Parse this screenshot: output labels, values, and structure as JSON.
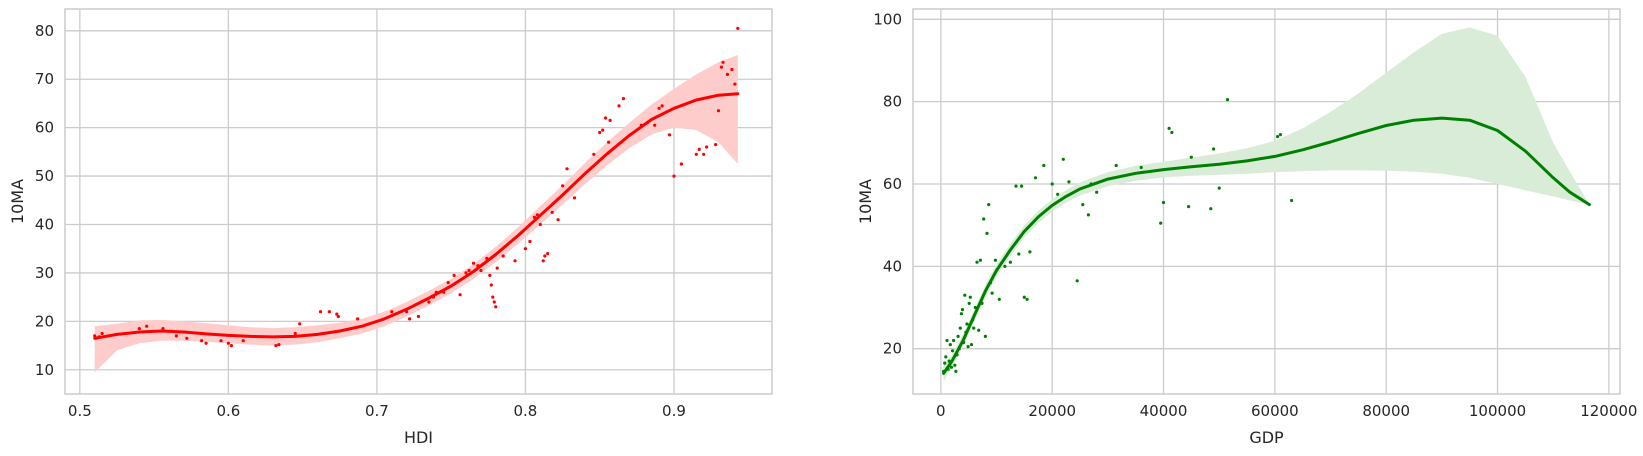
{
  "chart_data": [
    {
      "type": "scatter",
      "title": "",
      "xlabel": "HDI",
      "ylabel": "10MA",
      "xlim": [
        0.49,
        0.966
      ],
      "ylim": [
        5,
        84.5
      ],
      "xticks": [
        0.5,
        0.6,
        0.7,
        0.8,
        0.9
      ],
      "xtick_labels": [
        "0.5",
        "0.6",
        "0.7",
        "0.8",
        "0.9"
      ],
      "yticks": [
        10,
        20,
        30,
        40,
        50,
        60,
        70,
        80
      ],
      "ytick_labels": [
        "10",
        "20",
        "30",
        "40",
        "50",
        "60",
        "70",
        "80"
      ],
      "grid": true,
      "legend": "none",
      "color": "#ff0000",
      "band_color": "#ffcccc",
      "points": [
        [
          0.51,
          17.0
        ],
        [
          0.511,
          16.5
        ],
        [
          0.513,
          16.8
        ],
        [
          0.515,
          17.5
        ],
        [
          0.54,
          18.5
        ],
        [
          0.545,
          19.0
        ],
        [
          0.556,
          18.5
        ],
        [
          0.565,
          17.0
        ],
        [
          0.572,
          16.5
        ],
        [
          0.582,
          16.0
        ],
        [
          0.585,
          15.5
        ],
        [
          0.595,
          16.0
        ],
        [
          0.6,
          15.5
        ],
        [
          0.602,
          15.0
        ],
        [
          0.61,
          16.0
        ],
        [
          0.632,
          15.0
        ],
        [
          0.634,
          15.2
        ],
        [
          0.645,
          17.5
        ],
        [
          0.648,
          19.5
        ],
        [
          0.662,
          22.0
        ],
        [
          0.668,
          22.0
        ],
        [
          0.673,
          21.5
        ],
        [
          0.674,
          21.0
        ],
        [
          0.687,
          20.5
        ],
        [
          0.71,
          22.0
        ],
        [
          0.72,
          22.0
        ],
        [
          0.722,
          20.5
        ],
        [
          0.728,
          21.0
        ],
        [
          0.735,
          24.0
        ],
        [
          0.738,
          25.0
        ],
        [
          0.74,
          26.0
        ],
        [
          0.745,
          26.0
        ],
        [
          0.748,
          28.0
        ],
        [
          0.752,
          29.5
        ],
        [
          0.756,
          25.5
        ],
        [
          0.76,
          30.0
        ],
        [
          0.762,
          30.5
        ],
        [
          0.765,
          32.0
        ],
        [
          0.768,
          31.5
        ],
        [
          0.77,
          30.5
        ],
        [
          0.774,
          33.0
        ],
        [
          0.776,
          29.5
        ],
        [
          0.777,
          27.5
        ],
        [
          0.778,
          25.0
        ],
        [
          0.779,
          24.0
        ],
        [
          0.78,
          23.0
        ],
        [
          0.781,
          31.0
        ],
        [
          0.785,
          33.5
        ],
        [
          0.793,
          32.5
        ],
        [
          0.8,
          35.0
        ],
        [
          0.803,
          36.5
        ],
        [
          0.806,
          41.5
        ],
        [
          0.808,
          42.0
        ],
        [
          0.81,
          40.0
        ],
        [
          0.812,
          32.5
        ],
        [
          0.813,
          33.5
        ],
        [
          0.815,
          34.0
        ],
        [
          0.818,
          42.5
        ],
        [
          0.822,
          41.0
        ],
        [
          0.825,
          48.0
        ],
        [
          0.828,
          51.5
        ],
        [
          0.833,
          45.5
        ],
        [
          0.846,
          54.5
        ],
        [
          0.85,
          59.0
        ],
        [
          0.852,
          59.5
        ],
        [
          0.854,
          62.0
        ],
        [
          0.856,
          57.0
        ],
        [
          0.857,
          61.5
        ],
        [
          0.863,
          64.5
        ],
        [
          0.866,
          66.0
        ],
        [
          0.878,
          60.5
        ],
        [
          0.882,
          61.0
        ],
        [
          0.887,
          60.5
        ],
        [
          0.89,
          64.0
        ],
        [
          0.892,
          64.5
        ],
        [
          0.897,
          58.5
        ],
        [
          0.9,
          50.0
        ],
        [
          0.905,
          52.5
        ],
        [
          0.915,
          54.5
        ],
        [
          0.917,
          55.5
        ],
        [
          0.92,
          54.5
        ],
        [
          0.922,
          56.0
        ],
        [
          0.928,
          56.5
        ],
        [
          0.93,
          63.5
        ],
        [
          0.932,
          72.5
        ],
        [
          0.933,
          73.5
        ],
        [
          0.936,
          71.0
        ],
        [
          0.939,
          72.0
        ],
        [
          0.941,
          69.0
        ],
        [
          0.943,
          80.5
        ]
      ],
      "fit_x": [
        0.51,
        0.525,
        0.54,
        0.555,
        0.57,
        0.585,
        0.6,
        0.615,
        0.63,
        0.645,
        0.66,
        0.675,
        0.69,
        0.705,
        0.72,
        0.735,
        0.75,
        0.765,
        0.78,
        0.795,
        0.81,
        0.825,
        0.84,
        0.855,
        0.87,
        0.885,
        0.9,
        0.915,
        0.93,
        0.943
      ],
      "fit_y": [
        16.5,
        17.3,
        17.8,
        18.0,
        17.8,
        17.4,
        17.1,
        16.9,
        16.8,
        16.9,
        17.3,
        18.0,
        19.0,
        20.5,
        22.5,
        24.8,
        27.3,
        30.3,
        33.8,
        37.7,
        41.9,
        46.1,
        50.5,
        54.6,
        58.4,
        61.7,
        64.0,
        65.7,
        66.7,
        67.0
      ],
      "fit_lo": [
        9.5,
        14.0,
        15.5,
        16.0,
        16.0,
        15.8,
        15.5,
        15.2,
        15.0,
        15.2,
        15.7,
        16.5,
        17.5,
        19.0,
        21.0,
        23.3,
        25.8,
        28.8,
        32.2,
        36.0,
        40.0,
        44.1,
        48.3,
        52.2,
        55.8,
        58.6,
        60.0,
        59.5,
        57.0,
        52.5
      ],
      "fit_hi": [
        19.0,
        19.5,
        20.2,
        20.3,
        20.0,
        19.6,
        19.2,
        18.8,
        18.6,
        18.8,
        19.2,
        19.7,
        20.5,
        22.0,
        24.0,
        26.3,
        28.8,
        31.8,
        35.4,
        39.4,
        43.8,
        48.1,
        52.7,
        57.0,
        61.0,
        64.8,
        68.0,
        71.0,
        73.5,
        75.0
      ]
    },
    {
      "type": "scatter",
      "title": "",
      "xlabel": "GDP",
      "ylabel": "10MA",
      "xlim": [
        -5000,
        122000
      ],
      "ylim": [
        9,
        102.5
      ],
      "xticks": [
        0,
        20000,
        40000,
        60000,
        80000,
        100000,
        120000
      ],
      "xtick_labels": [
        "0",
        "20000",
        "40000",
        "60000",
        "80000",
        "100000",
        "120000"
      ],
      "yticks": [
        20,
        40,
        60,
        80,
        100
      ],
      "ytick_labels": [
        "20",
        "40",
        "60",
        "80",
        "100"
      ],
      "grid": true,
      "legend": "none",
      "color": "#008000",
      "band_color": "#d8ecd8",
      "points": [
        [
          500,
          14.5
        ],
        [
          700,
          16.5
        ],
        [
          900,
          18.0
        ],
        [
          1100,
          22.0
        ],
        [
          1300,
          15.0
        ],
        [
          1500,
          17.0
        ],
        [
          1700,
          21.0
        ],
        [
          1900,
          15.5
        ],
        [
          2100,
          19.5
        ],
        [
          2300,
          22.0
        ],
        [
          2500,
          16.0
        ],
        [
          2700,
          14.5
        ],
        [
          2900,
          18.5
        ],
        [
          3100,
          23.0
        ],
        [
          3300,
          20.0
        ],
        [
          3500,
          25.0
        ],
        [
          3700,
          28.5
        ],
        [
          3900,
          29.5
        ],
        [
          4100,
          21.5
        ],
        [
          4300,
          33.0
        ],
        [
          4500,
          24.0
        ],
        [
          4700,
          26.0
        ],
        [
          4900,
          20.5
        ],
        [
          5100,
          31.0
        ],
        [
          5300,
          32.5
        ],
        [
          5500,
          21.0
        ],
        [
          5700,
          27.0
        ],
        [
          5900,
          25.0
        ],
        [
          6200,
          30.0
        ],
        [
          6500,
          41.0
        ],
        [
          6800,
          24.5
        ],
        [
          7100,
          41.5
        ],
        [
          7400,
          31.0
        ],
        [
          7700,
          51.5
        ],
        [
          8000,
          23.0
        ],
        [
          8300,
          48.0
        ],
        [
          8600,
          55.0
        ],
        [
          8900,
          36.0
        ],
        [
          9200,
          33.5
        ],
        [
          9800,
          41.5
        ],
        [
          10500,
          32.0
        ],
        [
          11500,
          40.0
        ],
        [
          12500,
          41.0
        ],
        [
          13500,
          59.5
        ],
        [
          14000,
          43.0
        ],
        [
          14500,
          59.5
        ],
        [
          15000,
          32.5
        ],
        [
          15500,
          32.0
        ],
        [
          16000,
          43.5
        ],
        [
          17000,
          61.5
        ],
        [
          18500,
          64.5
        ],
        [
          20000,
          60.0
        ],
        [
          21000,
          57.5
        ],
        [
          22000,
          66.0
        ],
        [
          23000,
          60.5
        ],
        [
          24500,
          36.5
        ],
        [
          25500,
          55.0
        ],
        [
          26500,
          52.5
        ],
        [
          27000,
          60.0
        ],
        [
          28000,
          58.0
        ],
        [
          31500,
          64.5
        ],
        [
          36000,
          64.0
        ],
        [
          39500,
          50.5
        ],
        [
          40000,
          55.5
        ],
        [
          41000,
          73.5
        ],
        [
          41500,
          72.5
        ],
        [
          44500,
          54.5
        ],
        [
          45000,
          66.5
        ],
        [
          48500,
          54.0
        ],
        [
          49000,
          68.5
        ],
        [
          50000,
          59.0
        ],
        [
          51500,
          80.5
        ],
        [
          60500,
          71.5
        ],
        [
          61000,
          72.0
        ],
        [
          63000,
          56.0
        ]
      ],
      "fit_x": [
        500,
        2000,
        4000,
        6000,
        8000,
        10000,
        12500,
        15000,
        17500,
        20000,
        22500,
        25000,
        30000,
        35000,
        40000,
        45000,
        50000,
        55000,
        60000,
        65000,
        70000,
        75000,
        80000,
        85000,
        90000,
        95000,
        100000,
        105000,
        110000,
        113000,
        116500
      ],
      "fit_y": [
        14.0,
        17.0,
        22.0,
        28.0,
        34.0,
        39.0,
        44.0,
        48.5,
        52.0,
        54.8,
        57.0,
        58.8,
        61.2,
        62.6,
        63.5,
        64.2,
        64.8,
        65.6,
        66.7,
        68.3,
        70.2,
        72.3,
        74.2,
        75.5,
        76.0,
        75.5,
        73.0,
        68.0,
        61.5,
        58.0,
        55.0
      ],
      "fit_lo": [
        12.0,
        15.5,
        20.5,
        26.5,
        32.5,
        37.5,
        42.5,
        47.0,
        50.5,
        53.3,
        55.5,
        57.2,
        59.5,
        60.8,
        61.6,
        62.0,
        62.2,
        62.5,
        62.9,
        63.1,
        63.3,
        63.3,
        63.2,
        63.0,
        62.5,
        61.5,
        60.0,
        58.5,
        57.0,
        56.0,
        55.0
      ],
      "fit_hi": [
        16.0,
        18.5,
        23.5,
        29.5,
        35.5,
        40.5,
        45.5,
        50.0,
        53.5,
        56.3,
        58.5,
        60.4,
        62.9,
        64.4,
        65.4,
        66.4,
        67.4,
        68.7,
        70.5,
        73.5,
        77.5,
        82.0,
        87.0,
        92.0,
        96.5,
        98.0,
        96.0,
        86.0,
        70.0,
        63.0,
        55.0
      ]
    }
  ]
}
